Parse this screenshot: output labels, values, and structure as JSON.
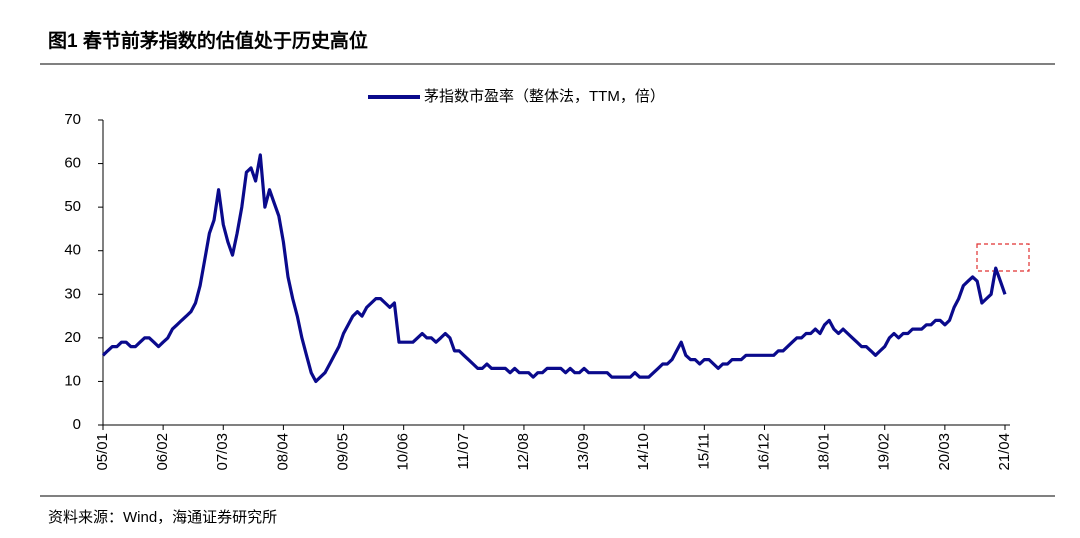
{
  "chart_data": {
    "type": "line",
    "title": "图1  春节前茅指数的估值处于历史高位",
    "source": "资料来源：Wind，海通证券研究所",
    "categories": [
      "05/01",
      null,
      null,
      null,
      null,
      null,
      null,
      null,
      null,
      null,
      null,
      null,
      null,
      "06/02",
      null,
      null,
      null,
      null,
      null,
      null,
      null,
      null,
      null,
      null,
      null,
      null,
      "07/03",
      null,
      null,
      null,
      null,
      null,
      null,
      null,
      null,
      null,
      null,
      null,
      null,
      "08/04",
      null,
      null,
      null,
      null,
      null,
      null,
      null,
      null,
      null,
      null,
      null,
      null,
      "09/05",
      null,
      null,
      null,
      null,
      null,
      null,
      null,
      null,
      null,
      null,
      null,
      null,
      "10/06",
      null,
      null,
      null,
      null,
      null,
      null,
      null,
      null,
      null,
      null,
      null,
      null,
      "11/07",
      null,
      null,
      null,
      null,
      null,
      null,
      null,
      null,
      null,
      null,
      null,
      null,
      "12/08",
      null,
      null,
      null,
      null,
      null,
      null,
      null,
      null,
      null,
      null,
      null,
      null,
      "13/09",
      null,
      null,
      null,
      null,
      null,
      null,
      null,
      null,
      null,
      null,
      null,
      null,
      "14/10",
      null,
      null,
      null,
      null,
      null,
      null,
      null,
      null,
      null,
      null,
      null,
      null,
      "15/11",
      null,
      null,
      null,
      null,
      null,
      null,
      null,
      null,
      null,
      null,
      null,
      null,
      "16/12",
      null,
      null,
      null,
      null,
      null,
      null,
      null,
      null,
      null,
      null,
      null,
      null,
      "18/01",
      null,
      null,
      null,
      null,
      null,
      null,
      null,
      null,
      null,
      null,
      null,
      null,
      "19/02",
      null,
      null,
      null,
      null,
      null,
      null,
      null,
      null,
      null,
      null,
      null,
      null,
      "20/03",
      null,
      null,
      null,
      null,
      null,
      null,
      null,
      null,
      null,
      null,
      null,
      null,
      "21/04"
    ],
    "series": [
      {
        "name": "茅指数市盈率（整体法，TTM，倍）",
        "color": "#0a0a8c",
        "values": [
          16,
          17,
          18,
          18,
          19,
          19,
          18,
          18,
          19,
          20,
          20,
          19,
          18,
          19,
          20,
          22,
          23,
          24,
          25,
          26,
          28,
          32,
          38,
          44,
          47,
          54,
          46,
          42,
          39,
          44,
          50,
          58,
          59,
          56,
          62,
          50,
          54,
          51,
          48,
          42,
          34,
          29,
          25,
          20,
          16,
          12,
          10,
          11,
          12,
          14,
          16,
          18,
          21,
          23,
          25,
          26,
          25,
          27,
          28,
          29,
          29,
          28,
          27,
          28,
          19,
          19,
          19,
          19,
          20,
          21,
          20,
          20,
          19,
          20,
          21,
          20,
          17,
          17,
          16,
          15,
          14,
          13,
          13,
          14,
          13,
          13,
          13,
          13,
          12,
          13,
          12,
          12,
          12,
          11,
          12,
          12,
          13,
          13,
          13,
          13,
          12,
          13,
          12,
          12,
          13,
          12,
          12,
          12,
          12,
          12,
          11,
          11,
          11,
          11,
          11,
          12,
          11,
          11,
          11,
          12,
          13,
          14,
          14,
          15,
          17,
          19,
          16,
          15,
          15,
          14,
          15,
          15,
          14,
          13,
          14,
          14,
          15,
          15,
          15,
          16,
          16,
          16,
          16,
          16,
          16,
          16,
          17,
          17,
          18,
          19,
          20,
          20,
          21,
          21,
          22,
          21,
          23,
          24,
          22,
          21,
          22,
          21,
          20,
          19,
          18,
          18,
          17,
          16,
          17,
          18,
          20,
          21,
          20,
          21,
          21,
          22,
          22,
          22,
          23,
          23,
          24,
          24,
          23,
          24,
          27,
          29,
          32,
          33,
          34,
          33,
          28,
          29,
          30,
          36,
          33,
          30
        ]
      }
    ],
    "ylim": [
      0,
      70
    ],
    "yticks": [
      0,
      10,
      20,
      30,
      40,
      50,
      60,
      70
    ]
  }
}
